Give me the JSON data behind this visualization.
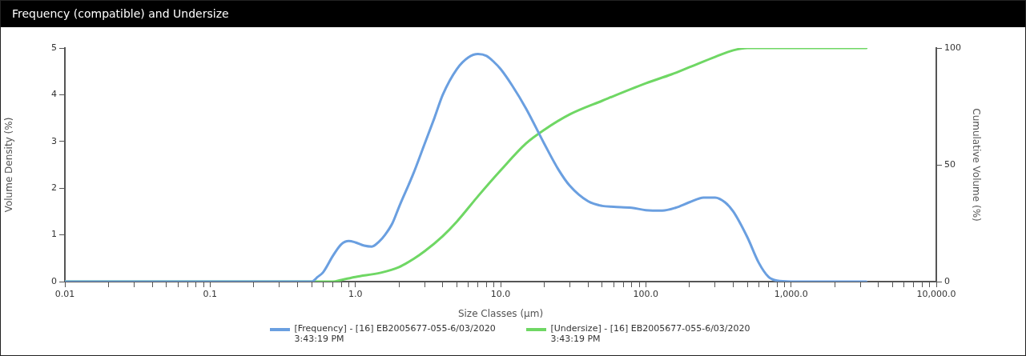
{
  "chart_data": {
    "type": "line",
    "title": "Frequency (compatible) and Undersize",
    "xlabel": "Size Classes (µm)",
    "ylabel": "Volume Density (%)",
    "y2label": "Cumulative Volume (%)",
    "log": "x",
    "grid": false,
    "legend": "bottom",
    "marker": "none",
    "line_style": "solid",
    "xlim": [
      0.01,
      10000
    ],
    "xticks": [
      {
        "value": 0.01,
        "label": "0.01"
      },
      {
        "value": 0.02,
        "label": null
      },
      {
        "value": 0.03,
        "label": null
      },
      {
        "value": 0.04,
        "label": null
      },
      {
        "value": 0.05,
        "label": null
      },
      {
        "value": 0.06,
        "label": null
      },
      {
        "value": 0.07,
        "label": null
      },
      {
        "value": 0.08,
        "label": null
      },
      {
        "value": 0.09,
        "label": null
      },
      {
        "value": 0.1,
        "label": "0.1"
      },
      {
        "value": 0.2,
        "label": null
      },
      {
        "value": 0.3,
        "label": null
      },
      {
        "value": 0.4,
        "label": null
      },
      {
        "value": 0.5,
        "label": null
      },
      {
        "value": 0.6,
        "label": null
      },
      {
        "value": 0.7,
        "label": null
      },
      {
        "value": 0.8,
        "label": null
      },
      {
        "value": 0.9,
        "label": null
      },
      {
        "value": 1,
        "label": "1.0"
      },
      {
        "value": 2,
        "label": null
      },
      {
        "value": 3,
        "label": null
      },
      {
        "value": 4,
        "label": null
      },
      {
        "value": 5,
        "label": null
      },
      {
        "value": 6,
        "label": null
      },
      {
        "value": 7,
        "label": null
      },
      {
        "value": 8,
        "label": null
      },
      {
        "value": 9,
        "label": null
      },
      {
        "value": 10,
        "label": "10.0"
      },
      {
        "value": 20,
        "label": null
      },
      {
        "value": 30,
        "label": null
      },
      {
        "value": 40,
        "label": null
      },
      {
        "value": 50,
        "label": null
      },
      {
        "value": 60,
        "label": null
      },
      {
        "value": 70,
        "label": null
      },
      {
        "value": 80,
        "label": null
      },
      {
        "value": 90,
        "label": null
      },
      {
        "value": 100,
        "label": "100.0"
      },
      {
        "value": 200,
        "label": null
      },
      {
        "value": 300,
        "label": null
      },
      {
        "value": 400,
        "label": null
      },
      {
        "value": 500,
        "label": null
      },
      {
        "value": 600,
        "label": null
      },
      {
        "value": 700,
        "label": null
      },
      {
        "value": 800,
        "label": null
      },
      {
        "value": 900,
        "label": null
      },
      {
        "value": 1000,
        "label": "1,000.0"
      },
      {
        "value": 2000,
        "label": null
      },
      {
        "value": 3000,
        "label": null
      },
      {
        "value": 4000,
        "label": null
      },
      {
        "value": 5000,
        "label": null
      },
      {
        "value": 6000,
        "label": null
      },
      {
        "value": 7000,
        "label": null
      },
      {
        "value": 8000,
        "label": null
      },
      {
        "value": 9000,
        "label": null
      },
      {
        "value": 10000,
        "label": "10,000.0"
      }
    ],
    "ylim": [
      0,
      5
    ],
    "yticks": [
      0,
      1,
      2,
      3,
      4,
      5
    ],
    "y2lim": [
      0,
      100
    ],
    "y2ticks": [
      0,
      50,
      100
    ],
    "series": [
      {
        "name": "[Frequency] - [16] EB2005677-055-6/03/2020 3:43:19 PM",
        "color": "#6a9fe0",
        "x": [
          0.01,
          0.5,
          0.55,
          0.6,
          0.7,
          0.8,
          0.9,
          1.0,
          1.15,
          1.3,
          1.45,
          1.6,
          1.8,
          2,
          2.5,
          3,
          3.5,
          4,
          5,
          6,
          7,
          8,
          9,
          10,
          12,
          15,
          20,
          25,
          30,
          40,
          50,
          60,
          80,
          100,
          130,
          160,
          200,
          250,
          300,
          350,
          400,
          500,
          600,
          700,
          800,
          1000,
          3300
        ],
        "values": [
          0,
          0,
          0.1,
          0.2,
          0.55,
          0.8,
          0.87,
          0.84,
          0.77,
          0.75,
          0.85,
          1.0,
          1.25,
          1.6,
          2.3,
          2.95,
          3.5,
          4.0,
          4.55,
          4.8,
          4.87,
          4.83,
          4.7,
          4.55,
          4.2,
          3.7,
          2.95,
          2.4,
          2.05,
          1.72,
          1.62,
          1.6,
          1.58,
          1.53,
          1.52,
          1.58,
          1.7,
          1.8,
          1.8,
          1.7,
          1.5,
          0.95,
          0.4,
          0.1,
          0.02,
          0,
          0
        ]
      },
      {
        "name": "[Undersize] - [16] EB2005677-055-6/03/2020 3:43:19 PM",
        "color": "#6fd764",
        "axis": "y2",
        "x": [
          0.01,
          0.7,
          0.8,
          1.0,
          1.5,
          2,
          2.5,
          3,
          4,
          5,
          7,
          10,
          15,
          20,
          30,
          50,
          100,
          150,
          200,
          300,
          400,
          500,
          3300
        ],
        "values": [
          0,
          0,
          0.7,
          2,
          3.8,
          6.2,
          9.6,
          13,
          19.5,
          25.7,
          36.6,
          47.6,
          59.2,
          65,
          71.6,
          77.4,
          84.9,
          88.7,
          91.8,
          96.2,
          99,
          100,
          100
        ]
      }
    ]
  }
}
